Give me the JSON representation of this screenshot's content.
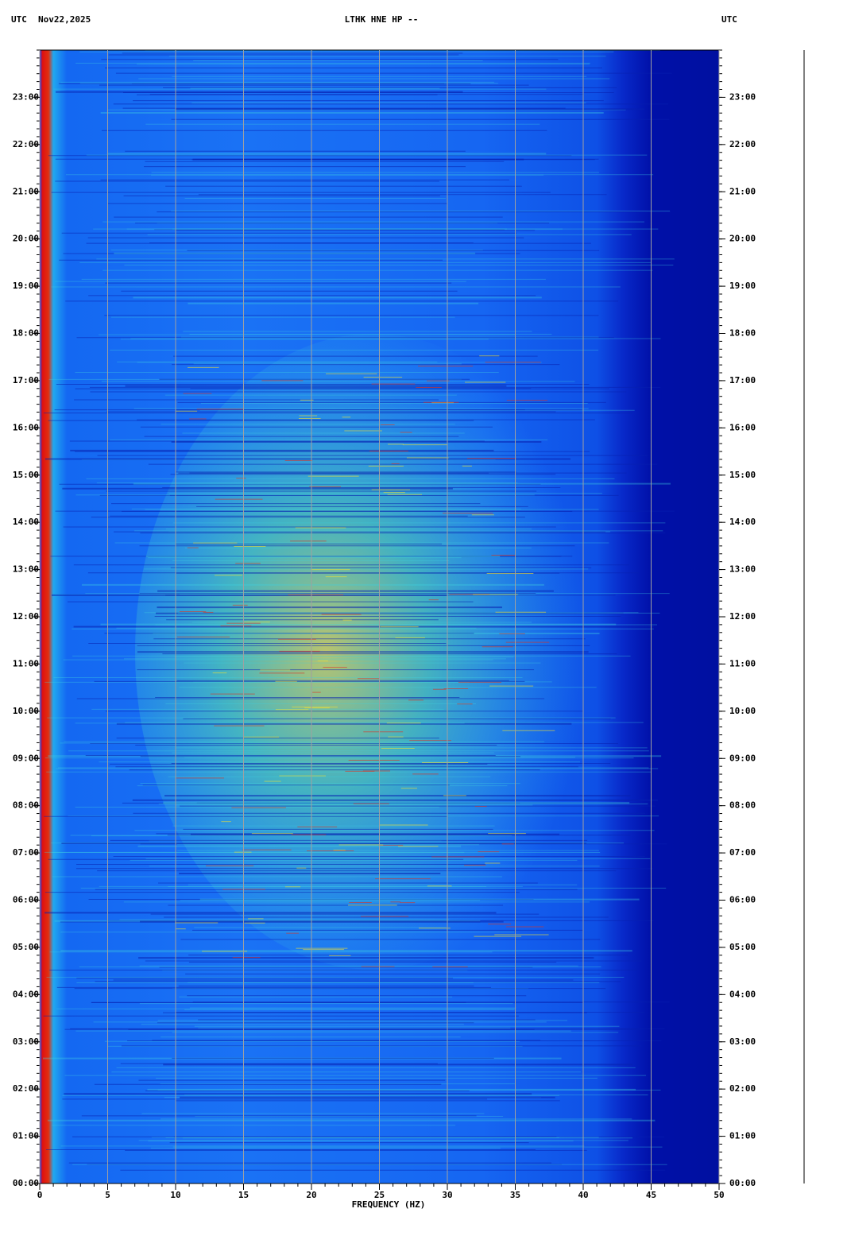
{
  "chart_data": {
    "type": "spectrogram",
    "title": "LTHK HNE HP --",
    "timezone_left": "UTC",
    "date": "Nov22,2025",
    "timezone_right": "UTC",
    "x_label": "FREQUENCY (HZ)",
    "xlim": [
      0,
      50
    ],
    "xticks": [
      0,
      5,
      10,
      15,
      20,
      25,
      30,
      35,
      40,
      45,
      50
    ],
    "ylim": [
      0,
      24
    ],
    "yticks": [
      {
        "value": 0,
        "label": "00:00"
      },
      {
        "value": 1,
        "label": "01:00"
      },
      {
        "value": 2,
        "label": "02:00"
      },
      {
        "value": 3,
        "label": "03:00"
      },
      {
        "value": 4,
        "label": "04:00"
      },
      {
        "value": 5,
        "label": "05:00"
      },
      {
        "value": 6,
        "label": "06:00"
      },
      {
        "value": 7,
        "label": "07:00"
      },
      {
        "value": 8,
        "label": "08:00"
      },
      {
        "value": 9,
        "label": "09:00"
      },
      {
        "value": 10,
        "label": "10:00"
      },
      {
        "value": 11,
        "label": "11:00"
      },
      {
        "value": 12,
        "label": "12:00"
      },
      {
        "value": 13,
        "label": "13:00"
      },
      {
        "value": 14,
        "label": "14:00"
      },
      {
        "value": 15,
        "label": "15:00"
      },
      {
        "value": 16,
        "label": "16:00"
      },
      {
        "value": 17,
        "label": "17:00"
      },
      {
        "value": 18,
        "label": "18:00"
      },
      {
        "value": 19,
        "label": "19:00"
      },
      {
        "value": 20,
        "label": "20:00"
      },
      {
        "value": 21,
        "label": "21:00"
      },
      {
        "value": 22,
        "label": "22:00"
      },
      {
        "value": 23,
        "label": "23:00"
      }
    ],
    "grid": "x",
    "grid_color": "#a0a0a0"
  }
}
